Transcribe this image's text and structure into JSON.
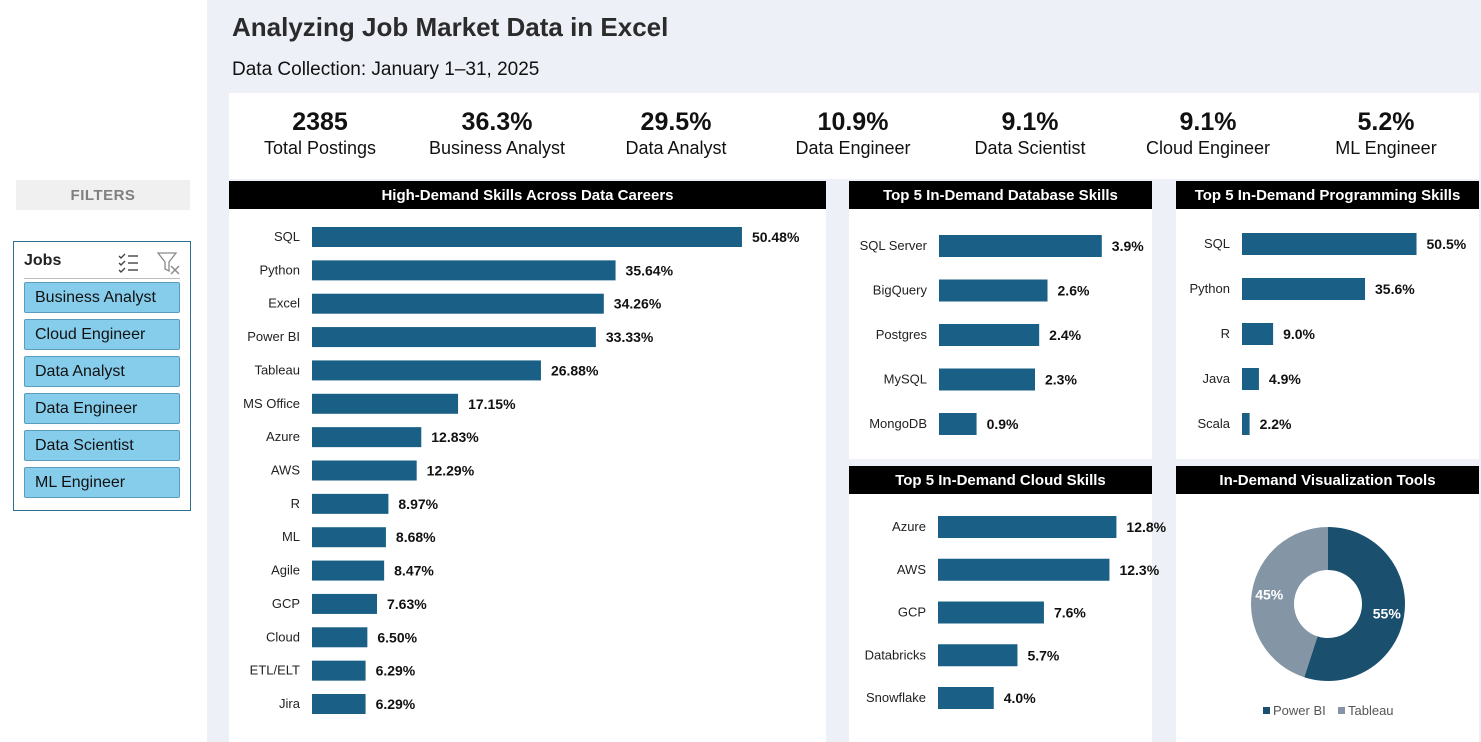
{
  "header": {
    "title": "Analyzing Job Market Data in Excel",
    "subtitle": "Data Collection: January 1–31, 2025"
  },
  "sidebar": {
    "filters_label": "FILTERS",
    "slicer": {
      "title": "Jobs",
      "multiselect_icon": "multi-select-icon",
      "clear_filter_icon": "clear-filter-icon",
      "items": [
        {
          "label": "Business Analyst"
        },
        {
          "label": "Cloud Engineer"
        },
        {
          "label": "Data Analyst"
        },
        {
          "label": "Data Engineer"
        },
        {
          "label": "Data Scientist"
        },
        {
          "label": "ML Engineer"
        }
      ]
    }
  },
  "kpis": [
    {
      "value": "2385",
      "label": "Total Postings"
    },
    {
      "value": "36.3%",
      "label": "Business Analyst"
    },
    {
      "value": "29.5%",
      "label": "Data Analyst"
    },
    {
      "value": "10.9%",
      "label": "Data Engineer"
    },
    {
      "value": "9.1%",
      "label": "Data Scientist"
    },
    {
      "value": "9.1%",
      "label": "Cloud Engineer"
    },
    {
      "value": "5.2%",
      "label": "ML Engineer"
    }
  ],
  "colors": {
    "bar": "#1a5f85",
    "donut_power_bi": "#1a4f6e",
    "donut_tableau": "#8496a6",
    "header_bg": "#000000",
    "page_bg": "#eef0f8"
  },
  "chart_data": [
    {
      "id": "skills",
      "type": "bar",
      "orientation": "horizontal",
      "title": "High-Demand Skills Across Data Careers",
      "categories": [
        "SQL",
        "Python",
        "Excel",
        "Power BI",
        "Tableau",
        "MS Office",
        "Azure",
        "AWS",
        "R",
        "ML",
        "Agile",
        "GCP",
        "Cloud",
        "ETL/ELT",
        "Jira"
      ],
      "values": [
        50.48,
        35.64,
        34.26,
        33.33,
        26.88,
        17.15,
        12.83,
        12.29,
        8.97,
        8.68,
        8.47,
        7.63,
        6.5,
        6.29,
        6.29
      ],
      "labels": [
        "50.48%",
        "35.64%",
        "34.26%",
        "33.33%",
        "26.88%",
        "17.15%",
        "12.83%",
        "12.29%",
        "8.97%",
        "8.68%",
        "8.47%",
        "7.63%",
        "6.50%",
        "6.29%",
        "6.29%"
      ],
      "xlim": [
        0,
        58
      ]
    },
    {
      "id": "database",
      "type": "bar",
      "orientation": "horizontal",
      "title": "Top 5 In-Demand Database Skills",
      "categories": [
        "SQL Server",
        "BigQuery",
        "Postgres",
        "MySQL",
        "MongoDB"
      ],
      "values": [
        3.9,
        2.6,
        2.4,
        2.3,
        0.9
      ],
      "labels": [
        "3.9%",
        "2.6%",
        "2.4%",
        "2.3%",
        "0.9%"
      ],
      "xlim": [
        0,
        4.6
      ]
    },
    {
      "id": "programming",
      "type": "bar",
      "orientation": "horizontal",
      "title": "Top 5 In-Demand Programming Skills",
      "categories": [
        "SQL",
        "Python",
        "R",
        "Java",
        "Scala"
      ],
      "values": [
        50.5,
        35.6,
        9.0,
        4.9,
        2.2
      ],
      "labels": [
        "50.5%",
        "35.6%",
        "9.0%",
        "4.9%",
        "2.2%"
      ],
      "xlim": [
        0,
        68
      ]
    },
    {
      "id": "cloud",
      "type": "bar",
      "orientation": "horizontal",
      "title": "Top 5 In-Demand Cloud Skills",
      "categories": [
        "Azure",
        "AWS",
        "GCP",
        "Databricks",
        "Snowflake"
      ],
      "values": [
        12.8,
        12.3,
        7.6,
        5.7,
        4.0
      ],
      "labels": [
        "12.8%",
        "12.3%",
        "7.6%",
        "5.7%",
        "4.0%"
      ],
      "xlim": [
        0,
        16.5
      ]
    },
    {
      "id": "viz",
      "type": "pie",
      "donut": true,
      "title": "In-Demand Visualization Tools",
      "series": [
        {
          "name": "Power BI",
          "value": 55,
          "label": "55%"
        },
        {
          "name": "Tableau",
          "value": 45,
          "label": "45%"
        }
      ],
      "legend": "bottom"
    }
  ]
}
